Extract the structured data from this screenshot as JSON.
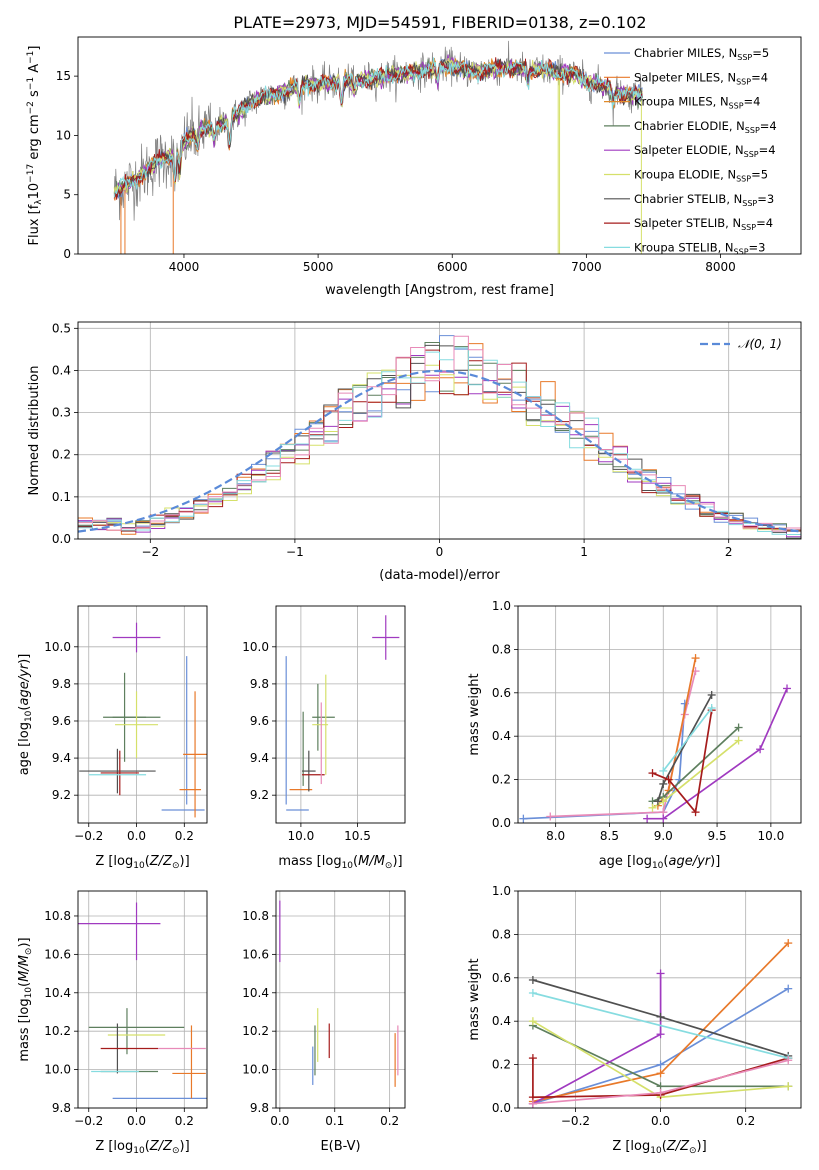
{
  "figure_title": "PLATE=2973, MJD=54591, FIBERID=0138, z=0.102",
  "colors": {
    "c1": "#6a8fd8",
    "c2": "#e8792a",
    "c3": "#e08a2a",
    "c4": "#5e7f5e",
    "c5": "#a03ac0",
    "c6": "#d5e06a",
    "c7": "#505050",
    "c8": "#a51c1c",
    "c9": "#86dce0",
    "gray": "#7f7f7f"
  },
  "chart_data": [
    {
      "id": "spectrum",
      "type": "line",
      "title": "",
      "xlabel": "wavelength [Angstrom, rest frame]",
      "ylabel": "Flux [f",
      "ylabel_sub": "λ",
      "ylabel_rest": "10",
      "ylabel_exp": "−17",
      "ylabel_tail": " erg cm",
      "ylabel_tail_exp": "−2",
      "ylabel_tail2": " s",
      "ylabel_tail2_exp": "−1",
      "ylabel_tail3": " A",
      "ylabel_tail3_exp": "−1",
      "ylabel_end": "]",
      "xlim": [
        3210,
        8600
      ],
      "ylim": [
        0,
        18.3
      ],
      "xticks": [
        4000,
        5000,
        6000,
        7000,
        8000
      ],
      "yticks": [
        0,
        5,
        10,
        15
      ],
      "grid": false,
      "legend_placement": "right",
      "legend": [
        {
          "name": "Chabrier MILES, N",
          "sub": "SSP",
          "suffix": "=5",
          "color": "#6a8fd8"
        },
        {
          "name": "Salpeter MILES, N",
          "sub": "SSP",
          "suffix": "=4",
          "color": "#e8792a"
        },
        {
          "name": "Kroupa MILES, N",
          "sub": "SSP",
          "suffix": "=4",
          "color": "#e08a2a"
        },
        {
          "name": "Chabrier ELODIE, N",
          "sub": "SSP",
          "suffix": "=4",
          "color": "#5e7f5e"
        },
        {
          "name": "Salpeter ELODIE, N",
          "sub": "SSP",
          "suffix": "=4",
          "color": "#a03ac0"
        },
        {
          "name": "Kroupa ELODIE, N",
          "sub": "SSP",
          "suffix": "=5",
          "color": "#d5e06a"
        },
        {
          "name": "Chabrier STELIB, N",
          "sub": "SSP",
          "suffix": "=3",
          "color": "#505050"
        },
        {
          "name": "Salpeter STELIB, N",
          "sub": "SSP",
          "suffix": "=4",
          "color": "#a51c1c"
        },
        {
          "name": "Kroupa STELIB, N",
          "sub": "SSP",
          "suffix": "=3",
          "color": "#86dce0"
        }
      ],
      "continuum_knots": [
        [
          3480,
          5.3
        ],
        [
          3600,
          6.0
        ],
        [
          3700,
          6.8
        ],
        [
          3800,
          7.8
        ],
        [
          3900,
          8.3
        ],
        [
          4000,
          9.4
        ],
        [
          4100,
          10.4
        ],
        [
          4200,
          10.6
        ],
        [
          4300,
          11.0
        ],
        [
          4400,
          11.8
        ],
        [
          4500,
          12.8
        ],
        [
          4600,
          13.3
        ],
        [
          4700,
          13.5
        ],
        [
          4800,
          13.9
        ],
        [
          4900,
          14.4
        ],
        [
          5000,
          14.3
        ],
        [
          5100,
          14.4
        ],
        [
          5200,
          14.6
        ],
        [
          5300,
          14.6
        ],
        [
          5400,
          14.8
        ],
        [
          5500,
          15.0
        ],
        [
          5600,
          15.2
        ],
        [
          5700,
          15.3
        ],
        [
          5800,
          15.5
        ],
        [
          5900,
          15.8
        ],
        [
          6000,
          15.9
        ],
        [
          6100,
          15.5
        ],
        [
          6200,
          15.4
        ],
        [
          6300,
          15.6
        ],
        [
          6400,
          15.7
        ],
        [
          6500,
          15.6
        ],
        [
          6600,
          15.5
        ],
        [
          6700,
          15.5
        ],
        [
          6800,
          15.3
        ],
        [
          6900,
          15.2
        ],
        [
          7000,
          14.5
        ],
        [
          7100,
          14.3
        ],
        [
          7200,
          13.8
        ],
        [
          7300,
          13.4
        ],
        [
          7400,
          13.5
        ]
      ],
      "data_range": [
        3480,
        7420
      ]
    },
    {
      "id": "residuals",
      "type": "line",
      "title": "",
      "xlabel": "(data-model)/error",
      "ylabel": "Normed distribution",
      "xlim": [
        -2.5,
        2.5
      ],
      "ylim": [
        0,
        0.515
      ],
      "xticks": [
        -2,
        -1,
        0,
        1,
        2
      ],
      "yticks": [
        0.0,
        0.1,
        0.2,
        0.3,
        0.4,
        0.5
      ],
      "grid": true,
      "legend_placement": "top-right",
      "legend": [
        {
          "name": "𝒩(0, 1)",
          "color": "#5a8ad8"
        }
      ],
      "hist_bin_width": 0.1
    },
    {
      "id": "age-Z",
      "type": "scatter",
      "xlabel": "Z [log",
      "xlabel_sub": "10",
      "xlabel_rest": "(Z/Z",
      "xlabel_sub2": "⊙",
      "xlabel_end": ")]",
      "ylabel": "age  [log",
      "ylabel_sub": "10",
      "ylabel_rest": "(age/yr)]",
      "xlim": [
        -0.245,
        0.295
      ],
      "ylim": [
        9.05,
        10.22
      ],
      "xticks": [
        -0.2,
        0.0,
        0.2
      ],
      "yticks": [
        9.2,
        9.4,
        9.6,
        9.8,
        10.0
      ],
      "grid": true,
      "points": [
        {
          "x": 0.0,
          "xerr": 0.1,
          "y": 10.05,
          "yerr": 0.08,
          "color": "#a03ac0"
        },
        {
          "x": 0.21,
          "xerr": 0.0,
          "y": 9.55,
          "yerr": 0.4,
          "color": "#6a8fd8"
        },
        {
          "x": 0.195,
          "xerr": 0.09,
          "y": 9.12,
          "yerr": 0.0,
          "color": "#6a8fd8"
        },
        {
          "x": 0.245,
          "xerr": 0.05,
          "y": 9.42,
          "yerr": 0.34,
          "color": "#e8792a"
        },
        {
          "x": 0.225,
          "xerr": 0.045,
          "y": 9.23,
          "yerr": 0.0,
          "color": "#e8792a"
        },
        {
          "x": -0.05,
          "xerr": 0.09,
          "y": 9.62,
          "yerr": 0.24,
          "color": "#5e7f5e"
        },
        {
          "x": 0.0,
          "xerr": 0.1,
          "y": 9.62,
          "yerr": 0.0,
          "color": "#5e7f5e"
        },
        {
          "x": 0.0,
          "xerr": 0.09,
          "y": 9.58,
          "yerr": 0.18,
          "color": "#d5e06a"
        },
        {
          "x": -0.08,
          "xerr": 0.16,
          "y": 9.33,
          "yerr": 0.12,
          "color": "#505050"
        },
        {
          "x": -0.07,
          "xerr": 0.08,
          "y": 9.32,
          "yerr": 0.12,
          "color": "#a51c1c"
        },
        {
          "x": -0.08,
          "xerr": 0.12,
          "y": 9.31,
          "yerr": 0.0,
          "color": "#86dce0"
        }
      ]
    },
    {
      "id": "age-mass",
      "type": "scatter",
      "xlabel": "mass [log",
      "xlabel_sub": "10",
      "xlabel_rest": "(M/M",
      "xlabel_sub2": "⊙",
      "xlabel_end": ")]",
      "xlim": [
        9.78,
        10.92
      ],
      "ylim": [
        9.05,
        10.22
      ],
      "xticks": [
        10.0,
        10.5
      ],
      "yticks": [
        9.2,
        9.4,
        9.6,
        9.8,
        10.0
      ],
      "grid": true,
      "points": [
        {
          "x": 10.75,
          "xerr": 0.12,
          "y": 10.05,
          "yerr": 0.12,
          "color": "#a03ac0"
        },
        {
          "x": 9.87,
          "xerr": 0.0,
          "y": 9.55,
          "yerr": 0.4,
          "color": "#6a8fd8"
        },
        {
          "x": 9.97,
          "xerr": 0.1,
          "y": 9.12,
          "yerr": 0.0,
          "color": "#6a8fd8"
        },
        {
          "x": 10.0,
          "xerr": 0.1,
          "y": 9.23,
          "yerr": 0.0,
          "color": "#e8792a"
        },
        {
          "x": 10.02,
          "xerr": 0.0,
          "y": 9.45,
          "yerr": 0.2,
          "color": "#5e7f5e"
        },
        {
          "x": 10.15,
          "xerr": 0.0,
          "y": 9.62,
          "yerr": 0.18,
          "color": "#5e7f5e"
        },
        {
          "x": 10.2,
          "xerr": 0.1,
          "y": 9.62,
          "yerr": 0.0,
          "color": "#5e7f5e"
        },
        {
          "x": 10.22,
          "xerr": 0.0,
          "y": 9.58,
          "yerr": 0.27,
          "color": "#d5e06a"
        },
        {
          "x": 10.17,
          "xerr": 0.07,
          "y": 9.58,
          "yerr": 0.0,
          "color": "#d5e06a"
        },
        {
          "x": 10.07,
          "xerr": 0.06,
          "y": 9.33,
          "yerr": 0.11,
          "color": "#505050"
        },
        {
          "x": 10.11,
          "xerr": 0.1,
          "y": 9.31,
          "yerr": 0.0,
          "color": "#a51c1c"
        },
        {
          "x": 10.18,
          "xerr": 0.0,
          "y": 9.48,
          "yerr": 0.22,
          "color": "#e88ab8"
        }
      ]
    },
    {
      "id": "mass-weight-age",
      "type": "line",
      "xlabel": "age  [log",
      "xlabel_sub": "10",
      "xlabel_rest": "(age/yr)]",
      "ylabel": "mass weight",
      "xlim": [
        7.65,
        10.28
      ],
      "ylim": [
        0,
        1.0
      ],
      "xticks": [
        8.0,
        8.5,
        9.0,
        9.5,
        10.0
      ],
      "yticks": [
        0.0,
        0.2,
        0.4,
        0.6,
        0.8,
        1.0
      ],
      "grid": true,
      "series": [
        {
          "color": "#6a8fd8",
          "x": [
            7.7,
            9.0,
            9.15,
            9.2
          ],
          "y": [
            0.02,
            0.05,
            0.2,
            0.55
          ]
        },
        {
          "color": "#e88ab8",
          "x": [
            7.95,
            9.0,
            9.2,
            9.3
          ],
          "y": [
            0.03,
            0.05,
            0.5,
            0.7
          ]
        },
        {
          "color": "#e8792a",
          "x": [
            8.95,
            9.05,
            9.3
          ],
          "y": [
            0.08,
            0.15,
            0.76
          ]
        },
        {
          "color": "#5e7f5e",
          "x": [
            8.9,
            9.0,
            9.7
          ],
          "y": [
            0.1,
            0.12,
            0.44
          ]
        },
        {
          "color": "#a03ac0",
          "x": [
            8.85,
            9.0,
            9.9,
            10.15
          ],
          "y": [
            0.02,
            0.02,
            0.34,
            0.62
          ]
        },
        {
          "color": "#d5e06a",
          "x": [
            8.9,
            9.0,
            9.7
          ],
          "y": [
            0.07,
            0.1,
            0.38
          ]
        },
        {
          "color": "#505050",
          "x": [
            8.95,
            9.0,
            9.45
          ],
          "y": [
            0.1,
            0.18,
            0.59
          ]
        },
        {
          "color": "#a51c1c",
          "x": [
            8.9,
            9.05,
            9.3,
            9.45
          ],
          "y": [
            0.23,
            0.2,
            0.05,
            0.52
          ]
        },
        {
          "color": "#86dce0",
          "x": [
            9.0,
            9.45
          ],
          "y": [
            0.24,
            0.53
          ]
        }
      ]
    },
    {
      "id": "mass-Z",
      "type": "scatter",
      "xlabel": "Z [log",
      "xlabel_sub": "10",
      "xlabel_rest": "(Z/Z",
      "xlabel_sub2": "⊙",
      "xlabel_end": ")]",
      "ylabel": "mass [log",
      "ylabel_sub": "10",
      "ylabel_rest": "(M/M",
      "ylabel_sub2": "⊙",
      "ylabel_end": ")]",
      "xlim": [
        -0.245,
        0.295
      ],
      "ylim": [
        9.8,
        10.93
      ],
      "xticks": [
        -0.2,
        0.0,
        0.2
      ],
      "yticks": [
        9.8,
        10.0,
        10.2,
        10.4,
        10.6,
        10.8
      ],
      "grid": true,
      "points": [
        {
          "x": 0.0,
          "xerr": 0.0,
          "y": 10.72,
          "yerr": 0.15,
          "color": "#a03ac0"
        },
        {
          "x": -0.1,
          "xerr": 0.2,
          "y": 10.76,
          "yerr": 0.0,
          "color": "#a03ac0"
        },
        {
          "x": 0.1,
          "xerr": 0.2,
          "y": 9.85,
          "yerr": 0.0,
          "color": "#6a8fd8"
        },
        {
          "x": 0.22,
          "xerr": 0.07,
          "y": 9.98,
          "yerr": 0.0,
          "color": "#e8792a"
        },
        {
          "x": 0.23,
          "xerr": 0.0,
          "y": 10.04,
          "yerr": 0.19,
          "color": "#e8792a"
        },
        {
          "x": -0.03,
          "xerr": 0.12,
          "y": 9.99,
          "yerr": 0.0,
          "color": "#5e7f5e"
        },
        {
          "x": 0.0,
          "xerr": 0.2,
          "y": 10.22,
          "yerr": 0.0,
          "color": "#5e7f5e"
        },
        {
          "x": -0.04,
          "xerr": 0.0,
          "y": 10.2,
          "yerr": 0.12,
          "color": "#5e7f5e"
        },
        {
          "x": 0.0,
          "xerr": 0.12,
          "y": 10.18,
          "yerr": 0.0,
          "color": "#d5e06a"
        },
        {
          "x": -0.08,
          "xerr": 0.0,
          "y": 10.11,
          "yerr": 0.13,
          "color": "#505050"
        },
        {
          "x": -0.03,
          "xerr": 0.12,
          "y": 10.11,
          "yerr": 0.0,
          "color": "#a51c1c"
        },
        {
          "x": 0.19,
          "xerr": 0.1,
          "y": 10.11,
          "yerr": 0.0,
          "color": "#e88ab8"
        },
        {
          "x": -0.09,
          "xerr": 0.1,
          "y": 9.99,
          "yerr": 0.0,
          "color": "#86dce0"
        }
      ]
    },
    {
      "id": "mass-EBV",
      "type": "scatter",
      "xlabel": "E(B-V)",
      "xlim": [
        -0.007,
        0.228
      ],
      "ylim": [
        9.8,
        10.93
      ],
      "xticks": [
        0.0,
        0.1,
        0.2
      ],
      "yticks": [
        9.8,
        10.0,
        10.2,
        10.4,
        10.6,
        10.8
      ],
      "grid": true,
      "points": [
        {
          "x": 0.0,
          "xerr": 0.0,
          "y": 10.72,
          "yerr": 0.16,
          "color": "#a03ac0"
        },
        {
          "x": 0.06,
          "xerr": 0.0,
          "y": 10.02,
          "yerr": 0.1,
          "color": "#6a8fd8"
        },
        {
          "x": 0.064,
          "xerr": 0.0,
          "y": 10.1,
          "yerr": 0.13,
          "color": "#5e7f5e"
        },
        {
          "x": 0.069,
          "xerr": 0.0,
          "y": 10.18,
          "yerr": 0.14,
          "color": "#d5e06a"
        },
        {
          "x": 0.09,
          "xerr": 0.0,
          "y": 10.15,
          "yerr": 0.09,
          "color": "#a51c1c"
        },
        {
          "x": 0.21,
          "xerr": 0.0,
          "y": 10.05,
          "yerr": 0.14,
          "color": "#e8792a"
        },
        {
          "x": 0.215,
          "xerr": 0.0,
          "y": 10.1,
          "yerr": 0.13,
          "color": "#e88ab8"
        }
      ]
    },
    {
      "id": "mass-weight-Z",
      "type": "line",
      "xlabel": "Z [log",
      "xlabel_sub": "10",
      "xlabel_rest": "(Z/Z",
      "xlabel_sub2": "⊙",
      "xlabel_end": ")]",
      "ylabel": "mass weight",
      "xlim": [
        -0.335,
        0.33
      ],
      "ylim": [
        0,
        1.0
      ],
      "xticks": [
        -0.2,
        0.0,
        0.2
      ],
      "yticks": [
        0.0,
        0.2,
        0.4,
        0.6,
        0.8,
        1.0
      ],
      "grid": true,
      "series": [
        {
          "color": "#6a8fd8",
          "x": [
            -0.3,
            0.0,
            0.3
          ],
          "y": [
            0.02,
            0.2,
            0.55
          ]
        },
        {
          "color": "#e8792a",
          "x": [
            -0.3,
            0.0,
            0.3
          ],
          "y": [
            0.03,
            0.16,
            0.76
          ]
        },
        {
          "color": "#5e7f5e",
          "x": [
            -0.3,
            0.0,
            0.3
          ],
          "y": [
            0.38,
            0.1,
            0.1
          ]
        },
        {
          "color": "#a03ac0",
          "x": [
            -0.3,
            0.0,
            0.0
          ],
          "y": [
            0.02,
            0.34,
            0.62
          ]
        },
        {
          "color": "#d5e06a",
          "x": [
            -0.3,
            0.0,
            0.3
          ],
          "y": [
            0.4,
            0.05,
            0.1
          ]
        },
        {
          "color": "#505050",
          "x": [
            -0.3,
            0.0,
            0.3
          ],
          "y": [
            0.59,
            0.42,
            0.24
          ]
        },
        {
          "color": "#a51c1c",
          "x": [
            -0.3,
            -0.3,
            0.0,
            0.3
          ],
          "y": [
            0.23,
            0.05,
            0.06,
            0.23
          ]
        },
        {
          "color": "#86dce0",
          "x": [
            -0.3,
            0.3
          ],
          "y": [
            0.53,
            0.23
          ]
        },
        {
          "color": "#e88ab8",
          "x": [
            -0.3,
            0.0,
            0.3
          ],
          "y": [
            0.02,
            0.07,
            0.22
          ]
        }
      ]
    }
  ]
}
